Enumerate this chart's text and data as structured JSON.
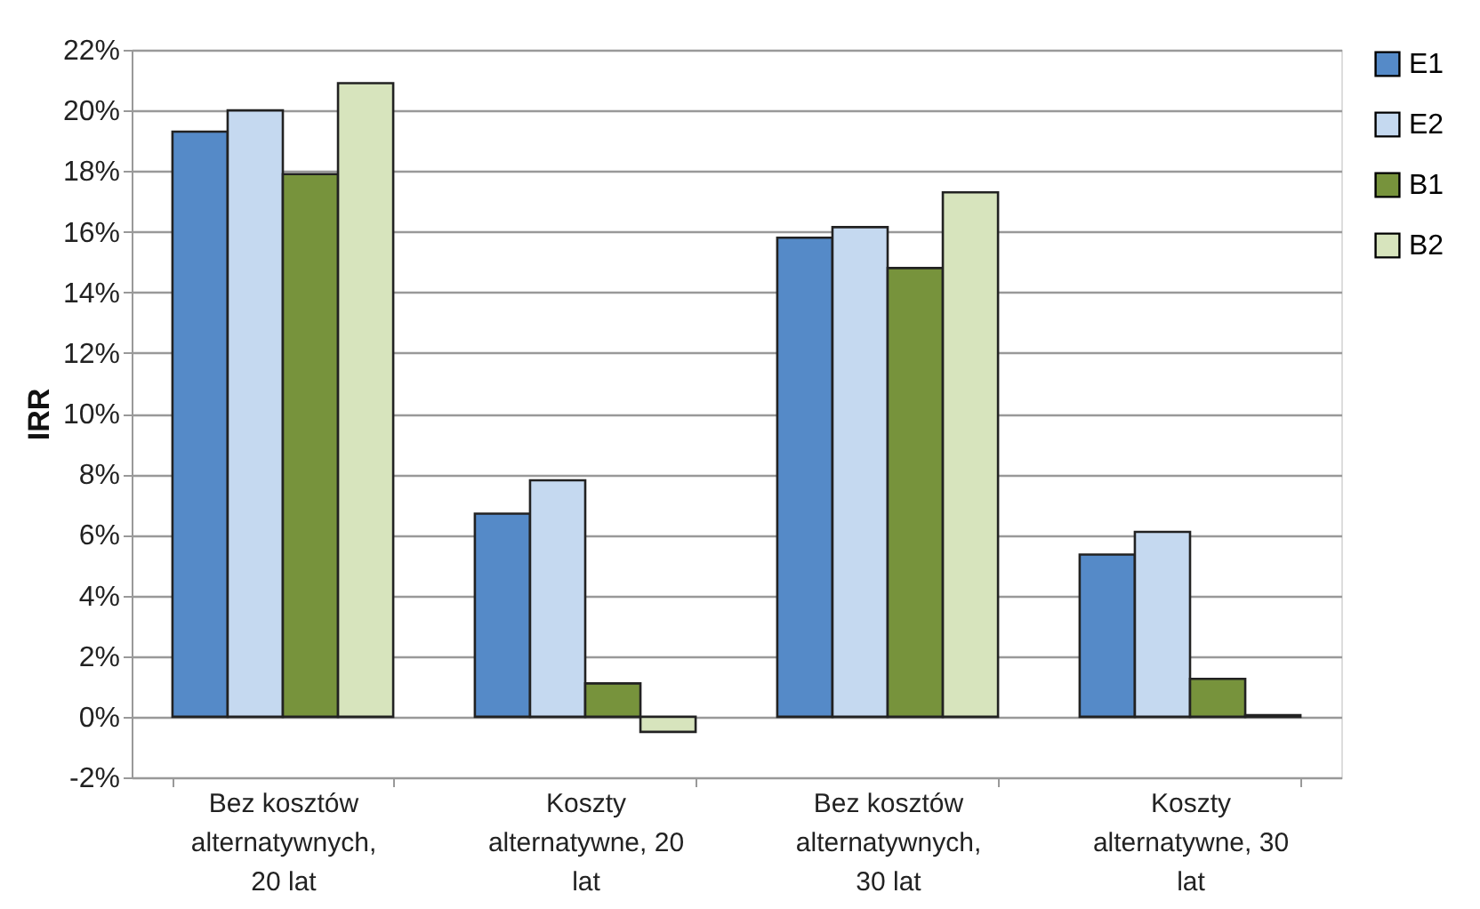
{
  "chart_data": {
    "type": "bar",
    "ylabel": "IRR",
    "categories": [
      "Bez kosztów alternatywnych, 20 lat",
      "Koszty alternatywne, 20 lat",
      "Bez kosztów alternatywnych, 30 lat",
      "Koszty alternatywne, 30 lat"
    ],
    "series": [
      {
        "name": "E1",
        "color": "#558ac8",
        "values": [
          19.3,
          6.7,
          15.8,
          5.35
        ]
      },
      {
        "name": "E2",
        "color": "#c5d9f0",
        "values": [
          20.0,
          7.8,
          16.15,
          6.1
        ]
      },
      {
        "name": "B1",
        "color": "#77933c",
        "values": [
          17.9,
          1.1,
          14.8,
          1.25
        ]
      },
      {
        "name": "B2",
        "color": "#d7e4bd",
        "values": [
          20.9,
          -0.5,
          17.3,
          0.05
        ]
      }
    ],
    "ylim": [
      -2,
      22
    ],
    "yticks": [
      {
        "value": -2,
        "label": "-2%"
      },
      {
        "value": 0,
        "label": "0%"
      },
      {
        "value": 2,
        "label": "2%"
      },
      {
        "value": 4,
        "label": "4%"
      },
      {
        "value": 6,
        "label": "6%"
      },
      {
        "value": 8,
        "label": "8%"
      },
      {
        "value": 10,
        "label": "10%"
      },
      {
        "value": 12,
        "label": "12%"
      },
      {
        "value": 14,
        "label": "14%"
      },
      {
        "value": 16,
        "label": "16%"
      },
      {
        "value": 18,
        "label": "18%"
      },
      {
        "value": 20,
        "label": "20%"
      },
      {
        "value": 22,
        "label": "22%"
      }
    ],
    "grid": "y",
    "legend": "right"
  }
}
